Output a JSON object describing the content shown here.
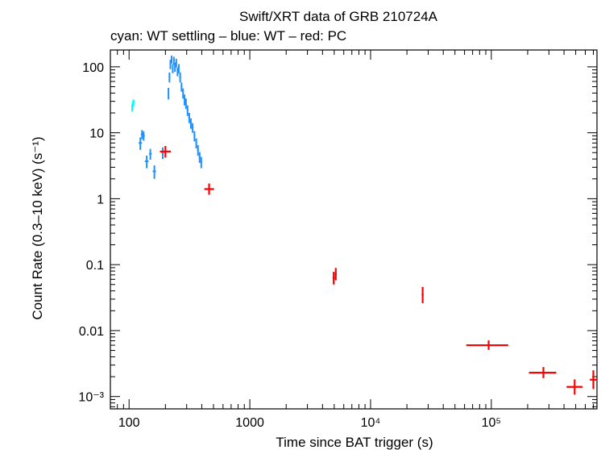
{
  "title": "Swift/XRT data of GRB 210724A",
  "subtitle": "cyan: WT settling – blue: WT – red: PC",
  "xlabel": "Time since BAT trigger (s)",
  "ylabel": "Count Rate (0.3–10 keV) (s⁻¹)",
  "colors": {
    "cyan": "#00ffff",
    "blue": "#1e90ff",
    "red": "#ff0000",
    "axis": "#000000"
  },
  "chart_data": {
    "type": "scatter",
    "xscale": "log",
    "yscale": "log",
    "xlim": [
      70,
      750000
    ],
    "ylim": [
      0.00065,
      180
    ],
    "xticks": [
      {
        "v": 100,
        "label": "100"
      },
      {
        "v": 1000,
        "label": "1000"
      },
      {
        "v": 10000,
        "label": "10⁴"
      },
      {
        "v": 100000,
        "label": "10⁵"
      }
    ],
    "yticks": [
      {
        "v": 100,
        "label": "100"
      },
      {
        "v": 10,
        "label": "10"
      },
      {
        "v": 1,
        "label": "1"
      },
      {
        "v": 0.1,
        "label": "0.1"
      },
      {
        "v": 0.01,
        "label": "0.01"
      },
      {
        "v": 0.001,
        "label": "10⁻³"
      }
    ],
    "series": [
      {
        "color": "cyan",
        "points": [
          {
            "x": 106,
            "y": 24,
            "xlo": 105,
            "xhi": 107,
            "ylo": 21,
            "yhi": 27
          },
          {
            "x": 107,
            "y": 26,
            "xlo": 106,
            "xhi": 108,
            "ylo": 23,
            "yhi": 29
          },
          {
            "x": 108,
            "y": 28,
            "xlo": 107,
            "xhi": 109,
            "ylo": 25,
            "yhi": 31
          },
          {
            "x": 109,
            "y": 29,
            "xlo": 108,
            "xhi": 110,
            "ylo": 26,
            "yhi": 32
          }
        ]
      },
      {
        "color": "blue",
        "points": [
          {
            "x": 124,
            "y": 7.0,
            "xlo": 120,
            "xhi": 128,
            "ylo": 5.5,
            "yhi": 8.5
          },
          {
            "x": 128,
            "y": 9.5,
            "xlo": 125,
            "xhi": 131,
            "ylo": 8.0,
            "yhi": 11.0
          },
          {
            "x": 132,
            "y": 9.0,
            "xlo": 129,
            "xhi": 135,
            "ylo": 7.6,
            "yhi": 10.5
          },
          {
            "x": 140,
            "y": 3.7,
            "xlo": 135,
            "xhi": 145,
            "ylo": 2.9,
            "yhi": 4.5
          },
          {
            "x": 150,
            "y": 4.8,
            "xlo": 146,
            "xhi": 154,
            "ylo": 3.9,
            "yhi": 5.7
          },
          {
            "x": 162,
            "y": 2.6,
            "xlo": 157,
            "xhi": 167,
            "ylo": 2.0,
            "yhi": 3.2
          },
          {
            "x": 190,
            "y": 5.0,
            "xlo": 185,
            "xhi": 195,
            "ylo": 4.0,
            "yhi": 6.0
          },
          {
            "x": 212,
            "y": 40,
            "xlo": 209,
            "xhi": 215,
            "ylo": 32,
            "yhi": 48
          },
          {
            "x": 216,
            "y": 70,
            "xlo": 213,
            "xhi": 219,
            "ylo": 58,
            "yhi": 82
          },
          {
            "x": 220,
            "y": 110,
            "xlo": 217,
            "xhi": 223,
            "ylo": 92,
            "yhi": 128
          },
          {
            "x": 225,
            "y": 130,
            "xlo": 222,
            "xhi": 228,
            "ylo": 112,
            "yhi": 148
          },
          {
            "x": 230,
            "y": 95,
            "xlo": 227,
            "xhi": 233,
            "ylo": 80,
            "yhi": 110
          },
          {
            "x": 235,
            "y": 125,
            "xlo": 232,
            "xhi": 238,
            "ylo": 108,
            "yhi": 142
          },
          {
            "x": 240,
            "y": 100,
            "xlo": 237,
            "xhi": 243,
            "ylo": 84,
            "yhi": 116
          },
          {
            "x": 246,
            "y": 115,
            "xlo": 243,
            "xhi": 249,
            "ylo": 98,
            "yhi": 132
          },
          {
            "x": 252,
            "y": 85,
            "xlo": 249,
            "xhi": 255,
            "ylo": 72,
            "yhi": 98
          },
          {
            "x": 258,
            "y": 95,
            "xlo": 255,
            "xhi": 261,
            "ylo": 80,
            "yhi": 110
          },
          {
            "x": 265,
            "y": 70,
            "xlo": 261,
            "xhi": 269,
            "ylo": 58,
            "yhi": 82
          },
          {
            "x": 272,
            "y": 50,
            "xlo": 268,
            "xhi": 276,
            "ylo": 42,
            "yhi": 58
          },
          {
            "x": 280,
            "y": 40,
            "xlo": 276,
            "xhi": 284,
            "ylo": 33,
            "yhi": 47
          },
          {
            "x": 288,
            "y": 32,
            "xlo": 284,
            "xhi": 292,
            "ylo": 26,
            "yhi": 38
          },
          {
            "x": 296,
            "y": 28,
            "xlo": 292,
            "xhi": 300,
            "ylo": 23,
            "yhi": 33
          },
          {
            "x": 305,
            "y": 22,
            "xlo": 300,
            "xhi": 310,
            "ylo": 18,
            "yhi": 26
          },
          {
            "x": 315,
            "y": 17,
            "xlo": 310,
            "xhi": 320,
            "ylo": 14,
            "yhi": 20
          },
          {
            "x": 325,
            "y": 14,
            "xlo": 320,
            "xhi": 330,
            "ylo": 11.5,
            "yhi": 16.5
          },
          {
            "x": 336,
            "y": 12,
            "xlo": 330,
            "xhi": 342,
            "ylo": 10,
            "yhi": 14
          },
          {
            "x": 348,
            "y": 9.0,
            "xlo": 342,
            "xhi": 354,
            "ylo": 7.4,
            "yhi": 10.6
          },
          {
            "x": 360,
            "y": 7.0,
            "xlo": 354,
            "xhi": 366,
            "ylo": 5.8,
            "yhi": 8.2
          },
          {
            "x": 372,
            "y": 5.5,
            "xlo": 366,
            "xhi": 378,
            "ylo": 4.5,
            "yhi": 6.5
          },
          {
            "x": 384,
            "y": 4.3,
            "xlo": 378,
            "xhi": 390,
            "ylo": 3.5,
            "yhi": 5.1
          },
          {
            "x": 396,
            "y": 3.6,
            "xlo": 390,
            "xhi": 402,
            "ylo": 2.9,
            "yhi": 4.3
          }
        ]
      },
      {
        "color": "red",
        "points": [
          {
            "x": 200,
            "y": 5.2,
            "xlo": 180,
            "xhi": 222,
            "ylo": 4.2,
            "yhi": 6.3
          },
          {
            "x": 460,
            "y": 1.4,
            "xlo": 420,
            "xhi": 505,
            "ylo": 1.15,
            "yhi": 1.7
          },
          {
            "x": 4950,
            "y": 0.063,
            "xlo": 4850,
            "xhi": 5050,
            "ylo": 0.05,
            "yhi": 0.078
          },
          {
            "x": 5150,
            "y": 0.072,
            "xlo": 5050,
            "xhi": 5250,
            "ylo": 0.058,
            "yhi": 0.089
          },
          {
            "x": 27000,
            "y": 0.035,
            "xlo": 26500,
            "xhi": 27500,
            "ylo": 0.026,
            "yhi": 0.046
          },
          {
            "x": 95000,
            "y": 0.006,
            "xlo": 62000,
            "xhi": 138000,
            "ylo": 0.0051,
            "yhi": 0.0071
          },
          {
            "x": 270000,
            "y": 0.0023,
            "xlo": 205000,
            "xhi": 345000,
            "ylo": 0.0019,
            "yhi": 0.0028
          },
          {
            "x": 490000,
            "y": 0.0014,
            "xlo": 420000,
            "xhi": 570000,
            "ylo": 0.00107,
            "yhi": 0.00182
          },
          {
            "x": 700000,
            "y": 0.0018,
            "xlo": 655000,
            "xhi": 750000,
            "ylo": 0.0013,
            "yhi": 0.0025
          }
        ]
      }
    ]
  }
}
